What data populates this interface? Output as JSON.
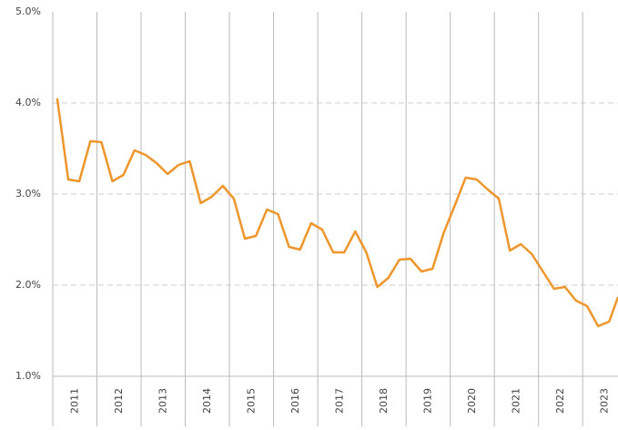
{
  "chart_data": {
    "type": "line",
    "x": [
      2011.1,
      2011.35,
      2011.6,
      2011.85,
      2012.1,
      2012.35,
      2012.6,
      2012.85,
      2013.1,
      2013.35,
      2013.6,
      2013.85,
      2014.1,
      2014.35,
      2014.6,
      2014.85,
      2015.1,
      2015.35,
      2015.6,
      2015.85,
      2016.1,
      2016.35,
      2016.6,
      2016.85,
      2017.1,
      2017.35,
      2017.6,
      2017.85,
      2018.1,
      2018.35,
      2018.6,
      2018.85,
      2019.1,
      2019.35,
      2019.6,
      2019.85,
      2020.1,
      2020.35,
      2020.6,
      2020.85,
      2021.1,
      2021.35,
      2021.6,
      2021.85,
      2022.1,
      2022.35,
      2022.6,
      2022.85,
      2023.1,
      2023.35,
      2023.6,
      2023.8
    ],
    "series": [
      {
        "color": "#ee962c",
        "values": [
          4.05,
          3.16,
          3.14,
          3.58,
          3.57,
          3.14,
          3.21,
          3.48,
          3.43,
          3.34,
          3.22,
          3.32,
          3.36,
          2.9,
          2.97,
          3.09,
          2.95,
          2.51,
          2.54,
          2.83,
          2.78,
          2.42,
          2.39,
          2.68,
          2.61,
          2.36,
          2.36,
          2.59,
          2.36,
          1.98,
          2.08,
          2.28,
          2.29,
          2.15,
          2.18,
          2.57,
          2.87,
          3.18,
          3.16,
          3.05,
          2.95,
          2.38,
          2.45,
          2.34,
          2.15,
          1.96,
          1.98,
          1.83,
          1.77,
          1.55,
          1.6,
          1.87
        ]
      }
    ],
    "xlim": [
      2011,
      2023.8
    ],
    "xticks": [
      2011,
      2012,
      2013,
      2014,
      2015,
      2016,
      2017,
      2018,
      2019,
      2020,
      2021,
      2022,
      2023
    ],
    "ylim": [
      1,
      5
    ],
    "yticks": [
      {
        "value": 1,
        "label": "1.0%"
      },
      {
        "value": 2,
        "label": "2.0%"
      },
      {
        "value": 3,
        "label": "3.0%"
      },
      {
        "value": 4,
        "label": "4.0%"
      },
      {
        "value": 5,
        "label": "5.0%"
      }
    ],
    "grid": true
  }
}
